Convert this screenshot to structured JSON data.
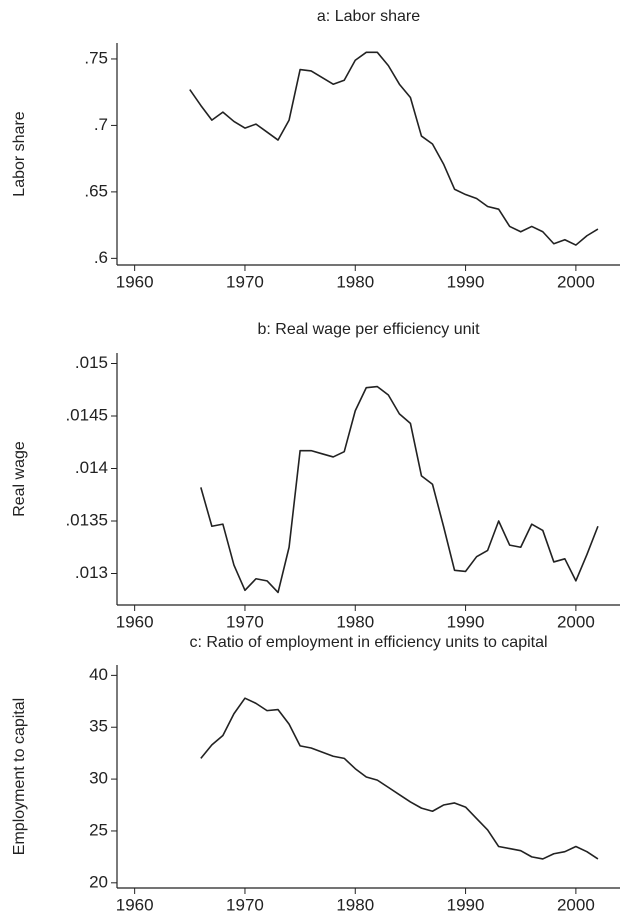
{
  "chart_data": [
    {
      "type": "line",
      "title": "a: Labor share",
      "y_label": "Labor share",
      "x": [
        1965,
        1966,
        1967,
        1968,
        1969,
        1970,
        1971,
        1972,
        1973,
        1974,
        1975,
        1976,
        1977,
        1978,
        1979,
        1980,
        1981,
        1982,
        1983,
        1984,
        1985,
        1986,
        1987,
        1988,
        1989,
        1990,
        1991,
        1992,
        1993,
        1994,
        1995,
        1996,
        1997,
        1998,
        1999,
        2000,
        2001,
        2002
      ],
      "series": [
        {
          "color": "#222222",
          "values": [
            0.727,
            0.715,
            0.704,
            0.71,
            0.703,
            0.698,
            0.701,
            0.695,
            0.689,
            0.704,
            0.742,
            0.741,
            0.736,
            0.731,
            0.734,
            0.749,
            0.755,
            0.755,
            0.745,
            0.731,
            0.721,
            0.692,
            0.686,
            0.671,
            0.652,
            0.648,
            0.645,
            0.639,
            0.637,
            0.624,
            0.62,
            0.624,
            0.62,
            0.611,
            0.614,
            0.61,
            0.617,
            0.622
          ]
        }
      ],
      "xlim": [
        1958.4,
        2004
      ],
      "xticks": [
        1960,
        1970,
        1980,
        1990,
        2000
      ],
      "ylim": [
        0.595,
        0.762
      ],
      "yticks": [
        {
          "value": 0.6,
          "label": ".6"
        },
        {
          "value": 0.65,
          "label": ".65"
        },
        {
          "value": 0.7,
          "label": ".7"
        },
        {
          "value": 0.75,
          "label": ".75"
        }
      ]
    },
    {
      "type": "line",
      "title": "b: Real wage per efficiency unit",
      "y_label": "Real wage",
      "x": [
        1966,
        1967,
        1968,
        1969,
        1970,
        1971,
        1972,
        1973,
        1974,
        1975,
        1976,
        1977,
        1978,
        1979,
        1980,
        1981,
        1982,
        1983,
        1984,
        1985,
        1986,
        1987,
        1988,
        1989,
        1990,
        1991,
        1992,
        1993,
        1994,
        1995,
        1996,
        1997,
        1998,
        1999,
        2000,
        2001,
        2002
      ],
      "series": [
        {
          "color": "#222222",
          "values": [
            0.01382,
            0.01345,
            0.01347,
            0.01308,
            0.01284,
            0.01295,
            0.01293,
            0.01282,
            0.01325,
            0.01417,
            0.01417,
            0.01414,
            0.01411,
            0.01416,
            0.01455,
            0.01477,
            0.01478,
            0.0147,
            0.01452,
            0.01443,
            0.01393,
            0.01385,
            0.01345,
            0.01303,
            0.01302,
            0.01316,
            0.01322,
            0.0135,
            0.01327,
            0.01325,
            0.01347,
            0.01341,
            0.01311,
            0.01314,
            0.01293,
            0.01318,
            0.01345
          ]
        }
      ],
      "xlim": [
        1958.4,
        2004
      ],
      "xticks": [
        1960,
        1970,
        1980,
        1990,
        2000
      ],
      "ylim": [
        0.0127,
        0.0151
      ],
      "yticks": [
        {
          "value": 0.013,
          "label": ".013"
        },
        {
          "value": 0.0135,
          "label": ".0135"
        },
        {
          "value": 0.014,
          "label": ".014"
        },
        {
          "value": 0.0145,
          "label": ".0145"
        },
        {
          "value": 0.015,
          "label": ".015"
        }
      ]
    },
    {
      "type": "line",
      "title": "c: Ratio of employment in efficiency units to capital",
      "y_label": "Employment to capital",
      "x": [
        1966,
        1967,
        1968,
        1969,
        1970,
        1971,
        1972,
        1973,
        1974,
        1975,
        1976,
        1977,
        1978,
        1979,
        1980,
        1981,
        1982,
        1983,
        1984,
        1985,
        1986,
        1987,
        1988,
        1989,
        1990,
        1991,
        1992,
        1993,
        1994,
        1995,
        1996,
        1997,
        1998,
        1999,
        2000,
        2001,
        2002
      ],
      "series": [
        {
          "color": "#222222",
          "values": [
            32,
            33.3,
            34.2,
            36.3,
            37.8,
            37.3,
            36.6,
            36.7,
            35.3,
            33.2,
            33.0,
            32.6,
            32.2,
            32.0,
            31.0,
            30.2,
            29.9,
            29.2,
            28.5,
            27.8,
            27.2,
            26.9,
            27.5,
            27.7,
            27.3,
            26.2,
            25.1,
            23.5,
            23.3,
            23.1,
            22.5,
            22.3,
            22.8,
            23.0,
            23.5,
            23.0,
            22.3
          ]
        }
      ],
      "xlim": [
        1958.4,
        2004
      ],
      "xticks": [
        1960,
        1970,
        1980,
        1990,
        2000
      ],
      "ylim": [
        19.5,
        41
      ],
      "yticks": [
        20,
        25,
        30,
        35,
        40
      ]
    }
  ]
}
